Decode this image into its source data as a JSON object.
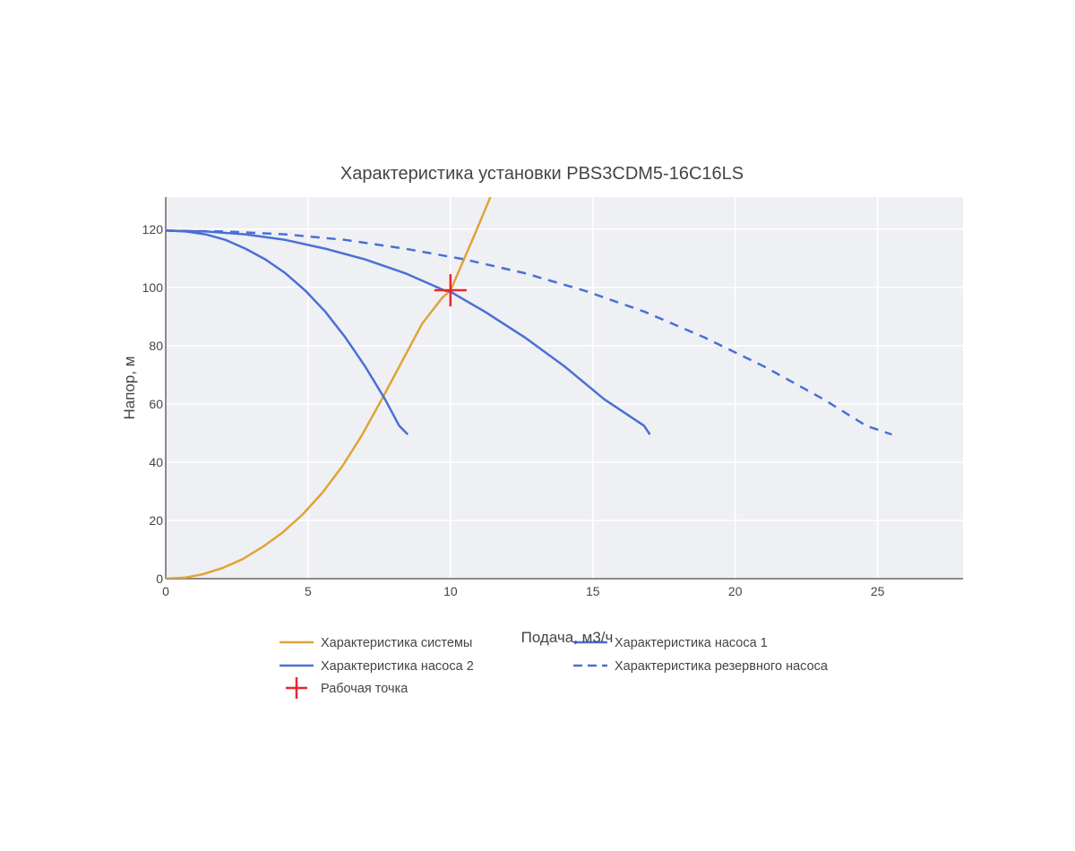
{
  "chart_data": {
    "type": "line",
    "title": "Характеристика установки PBS3CDM5-16C16LS",
    "xlabel": "Подача, м3/ч",
    "ylabel": "Напор, м",
    "xlim": [
      0,
      28
    ],
    "ylim": [
      0,
      131
    ],
    "xticks": [
      0,
      5,
      10,
      15,
      20,
      25
    ],
    "yticks": [
      0,
      20,
      40,
      60,
      80,
      100,
      120
    ],
    "grid": true,
    "legend_position": "bottom",
    "series": [
      {
        "name": "Характеристика системы",
        "color": "#e0a435",
        "dash": "solid",
        "x": [
          0,
          0.7,
          1.3,
          2.0,
          2.7,
          3.4,
          4.1,
          4.8,
          5.5,
          6.2,
          6.9,
          7.6,
          8.3,
          9.0,
          9.7,
          10.0,
          10.4,
          10.8,
          11.1,
          11.4
        ],
        "y": [
          0,
          0.4,
          1.5,
          3.7,
          6.7,
          10.9,
          15.8,
          22,
          29.5,
          38.6,
          49.4,
          61.8,
          74.6,
          87.5,
          96.3,
          99,
          108,
          117,
          124,
          131
        ]
      },
      {
        "name": "Характеристика насоса 1",
        "color": "#4a6fd6",
        "dash": "solid",
        "x": [
          0,
          0.7,
          1.4,
          2.1,
          2.8,
          3.5,
          4.2,
          4.9,
          5.6,
          6.3,
          7.0,
          7.7,
          8.2,
          8.5
        ],
        "y": [
          119.5,
          119.2,
          118.2,
          116.3,
          113.3,
          109.6,
          104.9,
          98.9,
          91.7,
          82.9,
          72.9,
          61.6,
          52.5,
          49.5
        ]
      },
      {
        "name": "Характеристика насоса 2",
        "color": "#4a6fd6",
        "dash": "solid",
        "x": [
          0,
          1.4,
          2.8,
          4.2,
          5.6,
          7.0,
          8.4,
          9.8,
          10.0,
          11.2,
          12.6,
          14.0,
          15.4,
          16.8,
          17.0
        ],
        "y": [
          119.5,
          119.2,
          118.2,
          116.3,
          113.3,
          109.6,
          104.9,
          98.9,
          98.5,
          91.7,
          82.9,
          72.9,
          61.6,
          52.5,
          49.5
        ]
      },
      {
        "name": "Характеристика резервного насоса",
        "color": "#4a6fd6",
        "dash": "dashed",
        "x": [
          0,
          2.1,
          4.2,
          6.3,
          8.4,
          10.5,
          12.6,
          14.7,
          16.8,
          18.9,
          21.0,
          23.1,
          24.6,
          25.5
        ],
        "y": [
          119.5,
          119.2,
          118.2,
          116.3,
          113.3,
          109.6,
          104.9,
          98.9,
          91.7,
          82.9,
          72.9,
          61.6,
          52.5,
          49.5
        ]
      }
    ],
    "operating_point": {
      "name": "Рабочая точка",
      "color": "#e8262b",
      "x": 10.0,
      "y": 99
    }
  }
}
